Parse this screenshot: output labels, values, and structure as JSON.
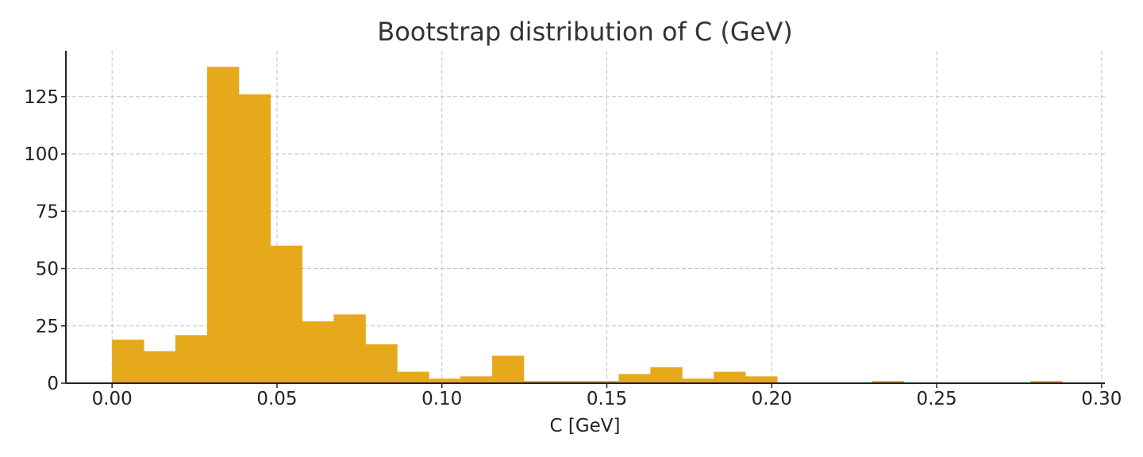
{
  "chart_data": {
    "type": "bar",
    "title": "Bootstrap distribution of C (GeV)",
    "xlabel": "C [GeV]",
    "ylabel": "",
    "bin_edges": [
      0.0,
      0.0096,
      0.0192,
      0.0288,
      0.0384,
      0.048,
      0.0576,
      0.0672,
      0.0768,
      0.0864,
      0.096,
      0.1056,
      0.1152,
      0.1248,
      0.1344,
      0.144,
      0.1536,
      0.1632,
      0.1728,
      0.1824,
      0.192,
      0.2016,
      0.2112,
      0.2208,
      0.2304,
      0.24,
      0.2496,
      0.2592,
      0.2688,
      0.2784,
      0.288
    ],
    "values": [
      19,
      14,
      21,
      138,
      126,
      60,
      27,
      30,
      17,
      5,
      2,
      3,
      12,
      1,
      1,
      1,
      4,
      7,
      2,
      5,
      3,
      0,
      0,
      0,
      1,
      0,
      0,
      0,
      0,
      1
    ],
    "bar_color": "#e6a91c",
    "xlim": [
      -0.014,
      0.301
    ],
    "ylim": [
      0,
      145
    ],
    "xticks": [
      0.0,
      0.05,
      0.1,
      0.15,
      0.2,
      0.25,
      0.3
    ],
    "xtick_labels": [
      "0.00",
      "0.05",
      "0.10",
      "0.15",
      "0.20",
      "0.25",
      "0.30"
    ],
    "yticks": [
      0,
      25,
      50,
      75,
      100,
      125
    ],
    "ytick_labels": [
      "0",
      "25",
      "50",
      "75",
      "100",
      "125"
    ],
    "grid": true
  }
}
